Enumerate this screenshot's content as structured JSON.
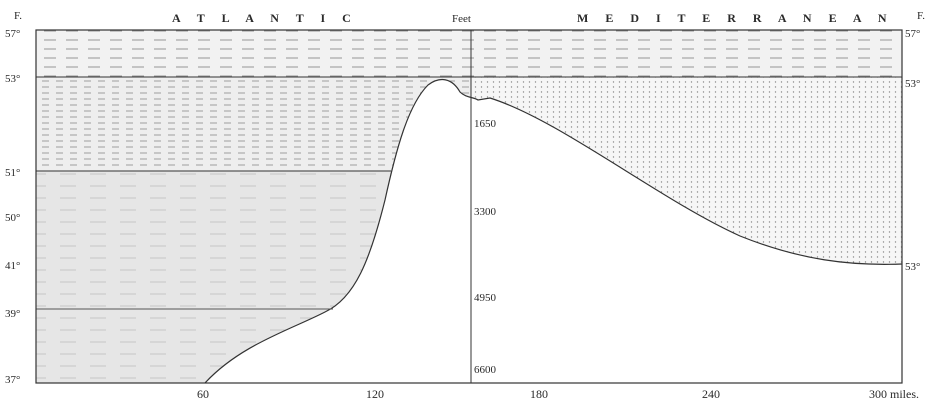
{
  "header": {
    "left_unit": "F.",
    "left_title": "A T L A N T I C",
    "center_title": "Feet",
    "right_title": "M E D I T E R R A N E A N",
    "right_unit": "F."
  },
  "left_temps": [
    "57°",
    "53°",
    "51°",
    "50°",
    "41°",
    "39°",
    "37°"
  ],
  "right_temps": [
    "57°",
    "53°",
    "53°"
  ],
  "depths": [
    "1650",
    "3300",
    "4950",
    "6600"
  ],
  "distances": [
    "60",
    "120",
    "180",
    "240",
    "300 miles."
  ],
  "colors": {
    "ink": "#333333",
    "paper": "#ffffff",
    "atlantic_deep": "#e6e6e6",
    "atlantic_mid": "#eeeeee",
    "surface_band": "#f2f2f2",
    "mediterranean": "#f6f6f6",
    "seabed": "#ffffff"
  }
}
